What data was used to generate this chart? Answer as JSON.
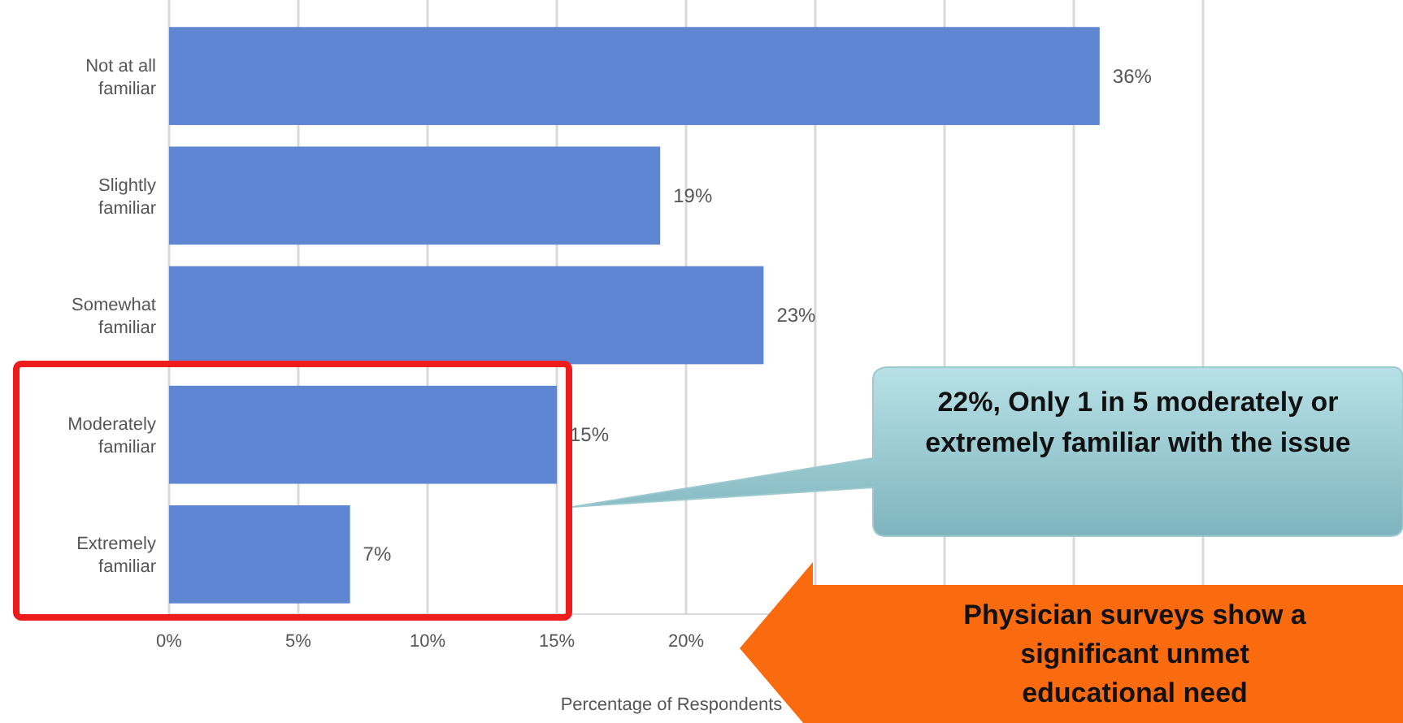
{
  "chart_data": {
    "type": "bar",
    "orientation": "horizontal",
    "xlabel": "Percentage of Respondents",
    "categories": [
      "Not at all familiar",
      "Slightly familiar",
      "Somewhat familiar",
      "Moderately familiar",
      "Extremely familiar"
    ],
    "values": [
      36,
      19,
      23,
      15,
      7
    ],
    "color": "#5f86d3",
    "value_labels": [
      "36%",
      "19%",
      "23%",
      "15%",
      "7%"
    ],
    "xlim": [
      0,
      40
    ],
    "xticks": [
      {
        "value": 0,
        "label": "0%"
      },
      {
        "value": 5,
        "label": "5%"
      },
      {
        "value": 10,
        "label": "10%"
      },
      {
        "value": 15,
        "label": "15%"
      },
      {
        "value": 20,
        "label": "20%"
      },
      {
        "value": 25,
        "label": null
      },
      {
        "value": 30,
        "label": null
      },
      {
        "value": 35,
        "label": null
      },
      {
        "value": 40,
        "label": null
      }
    ],
    "grid": "x",
    "annotations": [
      "22%, Only 1 in 5 moderately or extremely familiar with the issue",
      "Physician surveys show a significant unmet educational need"
    ]
  }
}
